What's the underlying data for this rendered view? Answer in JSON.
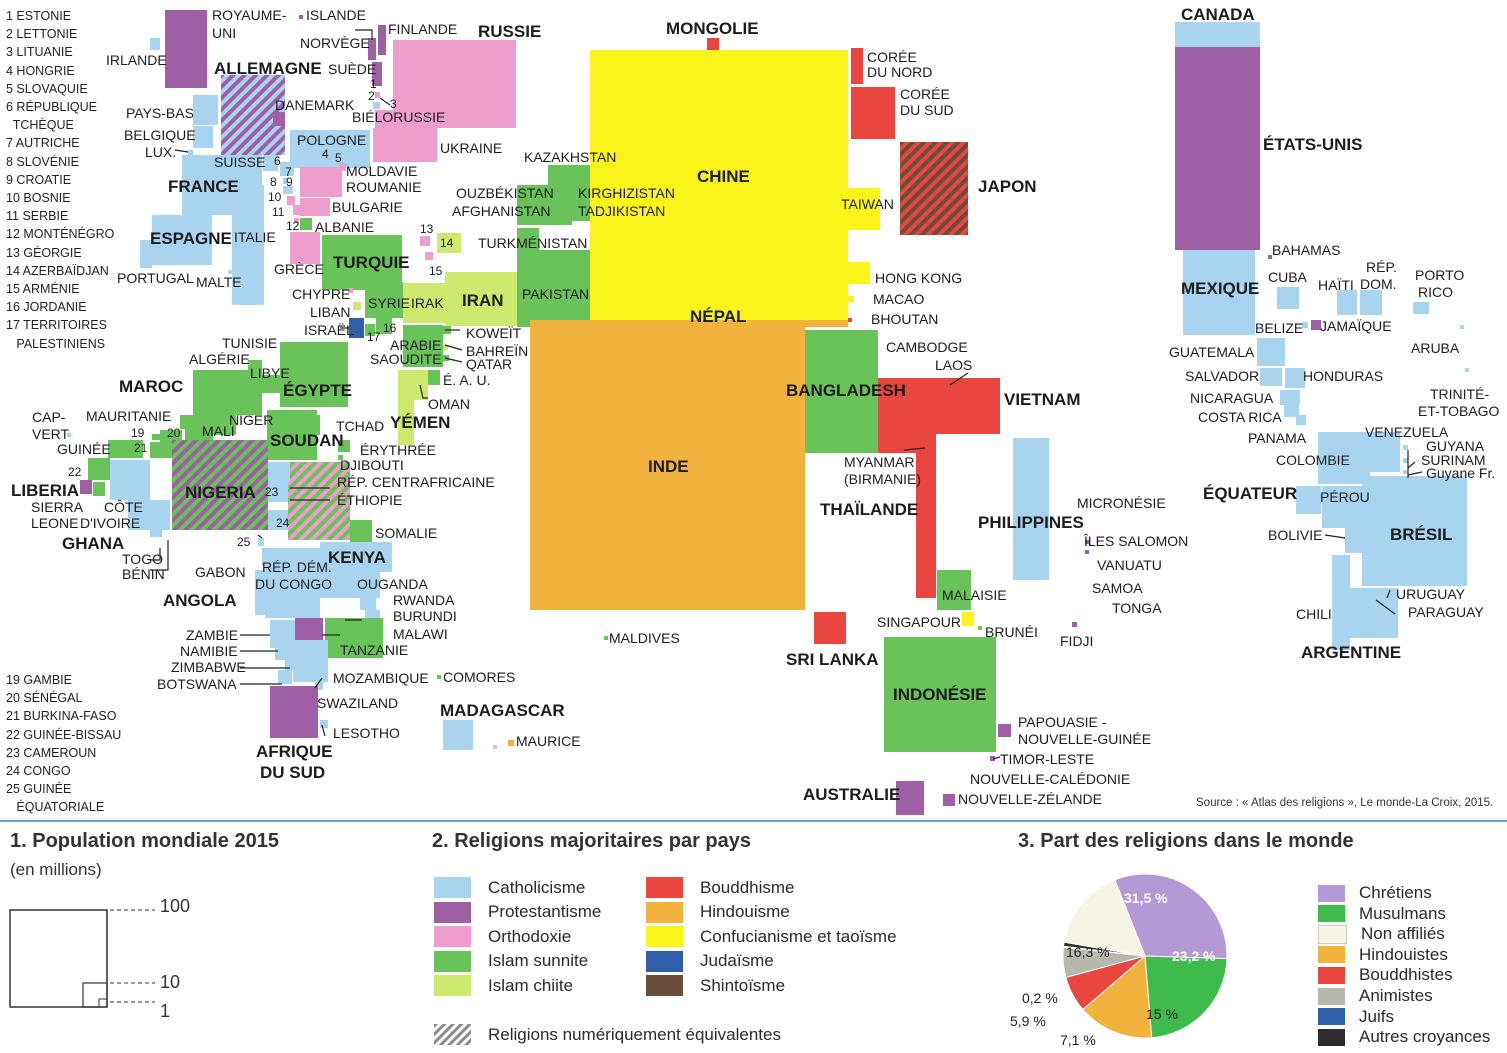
{
  "source": "Source : « Atlas des religions », Le monde-La Croix, 2015.",
  "colors": {
    "catholicisme": "#a8d4ef",
    "protestantisme": "#9e5fa5",
    "orthodoxie": "#ef9dcc",
    "islam_sunnite": "#6ac25a",
    "islam_chiite": "#cdea6e",
    "bouddhisme": "#e8463f",
    "hindouisme": "#f2b23e",
    "confucianisme": "#fbf41a",
    "judaisme": "#2f5fa8",
    "shintoisme": "#6b4b3a"
  },
  "numbered_list_top": [
    "1 ESTONIE",
    "2 LETTONIE",
    "3 LITUANIE",
    "4 HONGRIE",
    "5 SLOVAQUIE",
    "6 RÉPUBLIQUE\n  TCHÈQUE",
    "7 AUTRICHE",
    "8 SLOVÉNIE",
    "9 CROATIE",
    "10 BOSNIE",
    "11 SERBIE",
    "12 MONTÉNÉGRO",
    "13 GÉORGIE",
    "14 AZERBAÏDJAN",
    "15 ARMÉNIE",
    "16 JORDANIE",
    "17 TERRITOIRES\n   PALESTINIENS"
  ],
  "numbered_list_bottom": [
    "19 GAMBIE",
    "20 SÉNÉGAL",
    "21 BURKINA-FASO",
    "22 GUINÉE-BISSAU",
    "23 CAMEROUN",
    "24 CONGO",
    "25 GUINÉE\n   ÉQUATORIALE"
  ],
  "legend1": {
    "title": "1. Population mondiale 2015",
    "subtitle": "(en millions)",
    "values": [
      "100",
      "10",
      "1"
    ]
  },
  "legend2": {
    "title": "2. Religions majoritaires par pays",
    "items_left": [
      {
        "label": "Catholicisme",
        "color": "#a8d4ef"
      },
      {
        "label": "Protestantisme",
        "color": "#9e5fa5"
      },
      {
        "label": "Orthodoxie",
        "color": "#ef9dcc"
      },
      {
        "label": "Islam sunnite",
        "color": "#6ac25a"
      },
      {
        "label": "Islam chiite",
        "color": "#cdea6e"
      }
    ],
    "items_right": [
      {
        "label": "Bouddhisme",
        "color": "#e8463f"
      },
      {
        "label": "Hindouisme",
        "color": "#f2b23e"
      },
      {
        "label": "Confucianisme et taoïsme",
        "color": "#fbf41a"
      },
      {
        "label": "Judaïsme",
        "color": "#2f5fa8"
      },
      {
        "label": "Shintoïsme",
        "color": "#6b4b3a"
      }
    ],
    "equivalent_label": "Religions numériquement équivalentes"
  },
  "legend3": {
    "title": "3. Part des religions dans le monde",
    "labels": {
      "chretiens": "31,5 %",
      "musulmans": "23,2 %",
      "non_affilies": "16,3 %",
      "hindouistes": "15 %",
      "bouddhistes": "7,1 %",
      "animistes": "5,9 %",
      "juifs": "0,2 %"
    },
    "items": [
      {
        "label": "Chrétiens",
        "color": "#b39ad6"
      },
      {
        "label": "Musulmans",
        "color": "#3fbb4e"
      },
      {
        "label": "Non affiliés",
        "color": "#f8f4e4"
      },
      {
        "label": "Hindouistes",
        "color": "#f2b23e"
      },
      {
        "label": "Bouddhistes",
        "color": "#e8463f"
      },
      {
        "label": "Animistes",
        "color": "#b7b7ae"
      },
      {
        "label": "Juifs",
        "color": "#2f5fa8"
      },
      {
        "label": "Autres croyances",
        "color": "#2d2d2d"
      }
    ]
  },
  "pie_data": [
    {
      "name": "Chrétiens",
      "value": 31.5,
      "color": "#b39ad6"
    },
    {
      "name": "Musulmans",
      "value": 23.2,
      "color": "#3fbb4e"
    },
    {
      "name": "Hindouistes",
      "value": 15,
      "color": "#f2b23e"
    },
    {
      "name": "Bouddhistes",
      "value": 7.1,
      "color": "#e8463f"
    },
    {
      "name": "Animistes",
      "value": 5.9,
      "color": "#b7b7ae"
    },
    {
      "name": "Juifs",
      "value": 0.2,
      "color": "#2f5fa8"
    },
    {
      "name": "Autres croyances",
      "value": 0.8,
      "color": "#2d2d2d"
    },
    {
      "name": "Non affiliés",
      "value": 16.3,
      "color": "#f8f4e4"
    }
  ],
  "map_labels": {
    "chine": "CHINE",
    "inde": "INDE",
    "mongolie": "MONGOLIE",
    "nepal": "NÉPAL",
    "russie": "RUSSIE",
    "canada": "CANADA",
    "etats_unis": "ÉTATS-UNIS",
    "mexique": "MEXIQUE",
    "bresil": "BRÉSIL",
    "argentine": "ARGENTINE",
    "japon": "JAPON",
    "coree_nord": "CORÉE\nDU NORD",
    "coree_sud": "CORÉE\nDU SUD",
    "taiwan": "TAIWAN",
    "hong_kong": "HONG KONG",
    "macao": "MACAO",
    "bhoutan": "BHOUTAN",
    "bangladesh": "BANGLADESH",
    "cambodge": "CAMBODGE",
    "laos": "LAOS",
    "vietnam": "VIETNAM",
    "myanmar": "MYANMAR\n(BIRMANIE)",
    "thailande": "THAÏLANDE",
    "philippines": "PHILIPPINES",
    "malaisie": "MALAISIE",
    "singapour": "SINGAPOUR",
    "brunei": "BRUNÉI",
    "sri_lanka": "SRI LANKA",
    "indonesie": "INDONÉSIE",
    "maldives": "MALDIVES",
    "papouasie": "PAPOUASIE -\nNOUVELLE-GUINÉE",
    "timor": "TIMOR-LESTE",
    "nlle_caledonie": "NOUVELLE-CALÉDONIE",
    "nlle_zelande": "NOUVELLE-ZÉLANDE",
    "australie": "AUSTRALIE",
    "micronesie": "MICRONÉSIE",
    "salomon": "ÎLES SALOMON",
    "vanuatu": "VANUATU",
    "samoa": "SAMOA",
    "tonga": "TONGA",
    "fidji": "FIDJI",
    "kazakhstan": "KAZAKHSTAN",
    "ouzbekistan": "OUZBÉKISTAN",
    "afghanistan": "AFGHANISTAN",
    "kirghizistan": "KIRGHIZISTAN",
    "tadjikistan": "TADJIKISTAN",
    "turkmenistan": "TURKMÉNISTAN",
    "pakistan": "PAKISTAN",
    "iran": "IRAN",
    "irak": "IRAK",
    "syrie": "SYRIE",
    "turquie": "TURQUIE",
    "koweit": "KOWEÏT",
    "bahrein": "BAHREÏN",
    "qatar": "QATAR",
    "eau": "É. A. U.",
    "oman": "OMAN",
    "arabie": "ARABIE\nSAOUDITE",
    "yemen": "YÉMEN",
    "liban": "LIBAN",
    "israel": "ISRAËL",
    "chypre": "CHYPRE",
    "royaume_uni": "ROYAUME-\nUNI",
    "islande": "ISLANDE",
    "irlande": "IRLANDE",
    "allemagne": "ALLEMAGNE",
    "finlande": "FINLANDE",
    "norvege": "NORVÈGE",
    "suede": "SUÈDE",
    "danemark": "DANEMARK",
    "pays_bas": "PAYS-BAS",
    "belgique": "BELGIQUE",
    "lux": "LUX.",
    "bielorussie": "BIÉLORUSSIE",
    "ukraine": "UKRAINE",
    "pologne": "POLOGNE",
    "suisse": "SUISSE",
    "france": "FRANCE",
    "moldavie": "MOLDAVIE",
    "roumanie": "ROUMANIE",
    "bulgarie": "BULGARIE",
    "albanie": "ALBANIE",
    "espagne": "ESPAGNE",
    "italie": "ITALIE",
    "portugal": "PORTUGAL",
    "malte": "MALTE",
    "grece": "GRÈCE",
    "tunisie": "TUNISIE",
    "algerie": "ALGÉRIE",
    "libye": "LIBYE",
    "egypte": "ÉGYPTE",
    "maroc": "MAROC",
    "mauritanie": "MAURITANIE",
    "niger": "NIGER",
    "mali": "MALI",
    "tchad": "TCHAD",
    "soudan": "SOUDAN",
    "erythree": "ÉRYTHRÉE",
    "djibouti": "DJIBOUTI",
    "cap_vert": "CAP-\nVERT",
    "guinee": "GUINÉE",
    "liberia": "LIBERIA",
    "sierra_leone": "SIERRA\nLEONE",
    "cote_ivoire": "CÔTE\nD'IVOIRE",
    "ghana": "GHANA",
    "togo": "TOGO",
    "benin": "BÉNIN",
    "nigeria": "NIGERIA",
    "rca": "RÉP. CENTRAFRICAINE",
    "ethiopie": "ÉTHIOPIE",
    "somalie": "SOMALIE",
    "gabon": "GABON",
    "rdc": "RÉP. DÉM.\nDU CONGO",
    "kenya": "KENYA",
    "ouganda": "OUGANDA",
    "rwanda": "RWANDA",
    "burundi": "BURUNDI",
    "angola": "ANGOLA",
    "zambie": "ZAMBIE",
    "namibie": "NAMIBIE",
    "zimbabwe": "ZIMBABWE",
    "botswana": "BOTSWANA",
    "malawi": "MALAWI",
    "tanzanie": "TANZANIE",
    "mozambique": "MOZAMBIQUE",
    "comores": "COMORES",
    "swaziland": "SWAZILAND",
    "lesotho": "LESOTHO",
    "afrique_sud": "AFRIQUE\nDU SUD",
    "madagascar": "MADAGASCAR",
    "maurice": "MAURICE",
    "bahamas": "BAHAMAS",
    "cuba": "CUBA",
    "haiti": "HAÏTI",
    "rep_dom": "RÉP.\nDOM.",
    "porto_rico": "PORTO\nRICO",
    "belize": "BELIZE",
    "jamaique": "JAMAÏQUE",
    "aruba": "ARUBA",
    "guatemala": "GUATEMALA",
    "salvador": "SALVADOR",
    "honduras": "HONDURAS",
    "nicaragua": "NICARAGUA",
    "costa_rica": "COSTA RICA",
    "panama": "PANAMA",
    "trinite": "TRINITÉ-\nET-TOBAGO",
    "venezuela": "VENEZUELA",
    "guyana": "GUYANA",
    "surinam": "SURINAM",
    "guyane_fr": "Guyane Fr.",
    "colombie": "COLOMBIE",
    "equateur": "ÉQUATEUR",
    "perou": "PÉROU",
    "bolivie": "BOLIVIE",
    "chili": "CHILI",
    "uruguay": "URUGUAY",
    "paraguay": "PARAGUAY"
  }
}
